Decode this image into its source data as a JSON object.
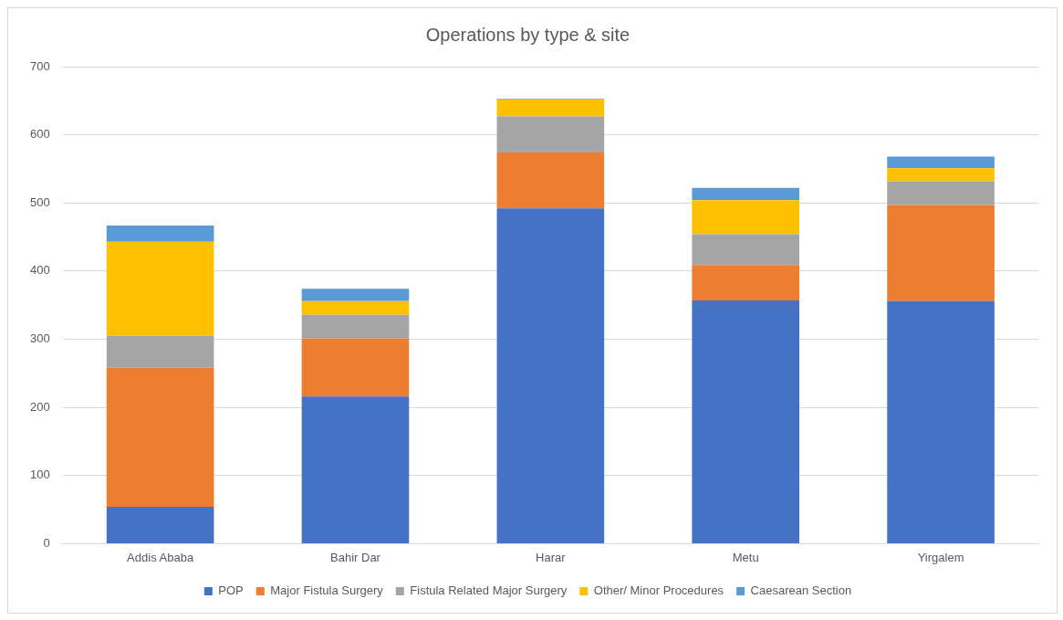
{
  "chart_data": {
    "type": "bar",
    "title": "Operations by type & site",
    "categories": [
      "Addis Ababa",
      "Bahir Dar",
      "Harar",
      "Metu",
      "Yirgalem"
    ],
    "stacked": true,
    "series": [
      {
        "name": "POP",
        "color": "#4472c4",
        "values": [
          54,
          216,
          492,
          357,
          356
        ]
      },
      {
        "name": "Major Fistula Surgery",
        "color": "#ed7d31",
        "values": [
          204,
          85,
          82,
          52,
          141
        ]
      },
      {
        "name": "Fistula Related Major Surgery",
        "color": "#a5a5a5",
        "values": [
          47,
          35,
          53,
          45,
          35
        ]
      },
      {
        "name": "Other/ Minor Procedures",
        "color": "#ffc000",
        "values": [
          138,
          20,
          25,
          50,
          19
        ]
      },
      {
        "name": "Caesarean Section",
        "color": "#5b9bd5",
        "values": [
          24,
          18,
          1,
          18,
          17
        ]
      }
    ],
    "ylim": [
      0,
      700
    ],
    "yticks": [
      0,
      100,
      200,
      300,
      400,
      500,
      600,
      700
    ],
    "grid": "y",
    "legend": "bottom"
  }
}
